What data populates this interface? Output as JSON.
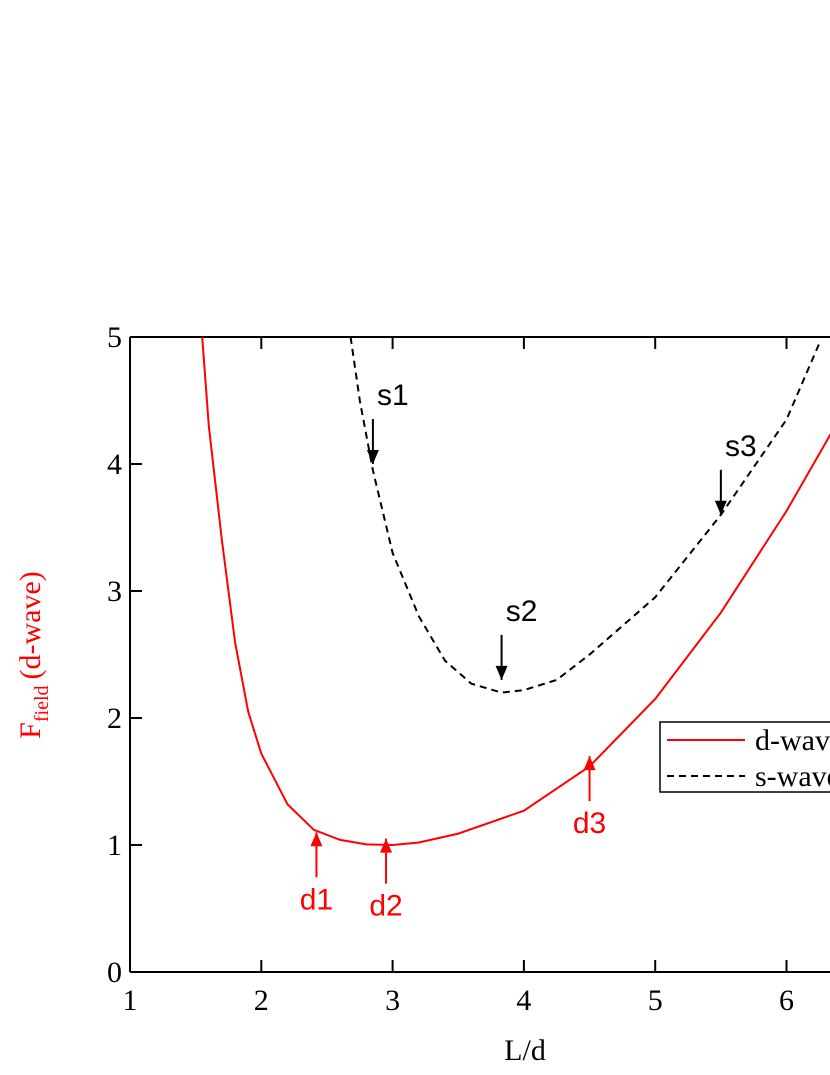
{
  "chart_data": {
    "type": "line",
    "x_label": "L/d",
    "y_label": {
      "main": "F",
      "sub": "field",
      "rest": "(d-wave)"
    },
    "y_label_color": "#ff0000",
    "xlim": [
      1,
      7
    ],
    "ylim": [
      0,
      5
    ],
    "xticks": [
      1,
      2,
      3,
      4,
      5,
      6
    ],
    "yticks": [
      0,
      1,
      2,
      3,
      4,
      5
    ],
    "series": [
      {
        "name": "d-wave",
        "color": "#ff0000",
        "dash": false,
        "x": [
          1.55,
          1.6,
          1.7,
          1.8,
          1.9,
          2.0,
          2.2,
          2.4,
          2.6,
          2.8,
          3.0,
          3.2,
          3.5,
          4.0,
          4.5,
          5.0,
          5.5,
          6.0,
          6.4
        ],
        "values": [
          5.0,
          4.3,
          3.4,
          2.6,
          2.05,
          1.72,
          1.32,
          1.12,
          1.04,
          1.005,
          1.0,
          1.02,
          1.09,
          1.27,
          1.62,
          2.15,
          2.83,
          3.63,
          4.35
        ]
      },
      {
        "name": "s-wave",
        "color": "#000000",
        "dash": true,
        "x": [
          2.68,
          2.75,
          2.85,
          3.0,
          3.2,
          3.4,
          3.6,
          3.83,
          4.0,
          4.25,
          4.5,
          5.0,
          5.5,
          6.0,
          6.25
        ],
        "values": [
          5.0,
          4.5,
          3.95,
          3.3,
          2.8,
          2.45,
          2.27,
          2.2,
          2.22,
          2.3,
          2.5,
          2.95,
          3.6,
          4.35,
          4.95
        ]
      }
    ],
    "annotations": [
      {
        "text": "s1",
        "x": 2.85,
        "y": 4.0,
        "direction": "down",
        "color": "#000000"
      },
      {
        "text": "s2",
        "x": 3.83,
        "y": 2.3,
        "direction": "down",
        "color": "#000000"
      },
      {
        "text": "s3",
        "x": 5.5,
        "y": 3.6,
        "direction": "down",
        "color": "#000000"
      },
      {
        "text": "d1",
        "x": 2.42,
        "y": 1.1,
        "direction": "up",
        "color": "#ff0000"
      },
      {
        "text": "d2",
        "x": 2.95,
        "y": 1.05,
        "direction": "up",
        "color": "#ff0000"
      },
      {
        "text": "d3",
        "x": 4.5,
        "y": 1.7,
        "direction": "up",
        "color": "#ff0000"
      }
    ]
  }
}
